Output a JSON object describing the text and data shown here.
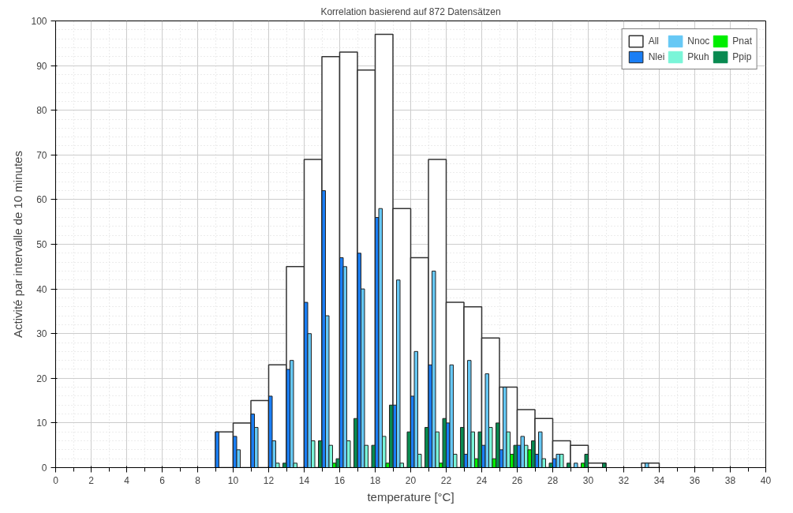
{
  "chart_data": {
    "type": "bar",
    "title": "Korrelation basierend auf 872 Datensätzen",
    "xlabel": "temperature [°C]",
    "ylabel": "Activité par intervalle de 10 minutes",
    "x": [
      9.5,
      10.5,
      11.5,
      12.5,
      13.5,
      14.5,
      15.5,
      16.5,
      17.5,
      18.5,
      19.5,
      20.5,
      21.5,
      22.5,
      23.5,
      24.5,
      25.5,
      26.5,
      27.5,
      28.5,
      29.5,
      30.5,
      31.5,
      32.5,
      33.5
    ],
    "series": [
      {
        "name": "All",
        "color": "#ffffff",
        "values": [
          8,
          10,
          15,
          23,
          45,
          69,
          92,
          93,
          89,
          97,
          58,
          47,
          69,
          37,
          36,
          29,
          18,
          13,
          11,
          6,
          5,
          1,
          0,
          0,
          1
        ]
      },
      {
        "name": "Nlei",
        "color": "#1a7ef5",
        "values": [
          8,
          7,
          12,
          16,
          22,
          37,
          62,
          47,
          48,
          56,
          14,
          16,
          23,
          10,
          3,
          5,
          4,
          5,
          3,
          2,
          0,
          0,
          0,
          0,
          0
        ]
      },
      {
        "name": "Nnoc",
        "color": "#66c8f5",
        "values": [
          0,
          4,
          9,
          6,
          24,
          30,
          34,
          45,
          40,
          58,
          42,
          26,
          44,
          23,
          24,
          21,
          18,
          7,
          8,
          3,
          1,
          0,
          0,
          0,
          1
        ]
      },
      {
        "name": "Pkuh",
        "color": "#7af5d8",
        "values": [
          0,
          0,
          0,
          1,
          1,
          6,
          5,
          6,
          5,
          7,
          1,
          3,
          8,
          3,
          8,
          9,
          8,
          5,
          2,
          3,
          0,
          0,
          0,
          0,
          0
        ]
      },
      {
        "name": "Pnat",
        "color": "#00ee00",
        "values": [
          0,
          0,
          0,
          0,
          0,
          0,
          1,
          0,
          0,
          1,
          0,
          0,
          1,
          0,
          2,
          2,
          3,
          4,
          0,
          0,
          1,
          0,
          0,
          0,
          0
        ]
      },
      {
        "name": "Ppip",
        "color": "#088a50",
        "values": [
          0,
          0,
          0,
          1,
          0,
          6,
          2,
          11,
          5,
          14,
          8,
          9,
          11,
          9,
          8,
          10,
          5,
          6,
          1,
          1,
          3,
          1,
          0,
          0,
          0
        ]
      }
    ],
    "xlim": [
      0,
      40
    ],
    "xticks": [
      0,
      2,
      4,
      6,
      8,
      10,
      12,
      14,
      16,
      18,
      20,
      22,
      24,
      26,
      28,
      30,
      32,
      34,
      36,
      38,
      40
    ],
    "ylim": [
      0,
      100
    ],
    "yticks": [
      0,
      10,
      20,
      30,
      40,
      50,
      60,
      70,
      80,
      90,
      100
    ],
    "grid": true,
    "legend": "top right"
  }
}
